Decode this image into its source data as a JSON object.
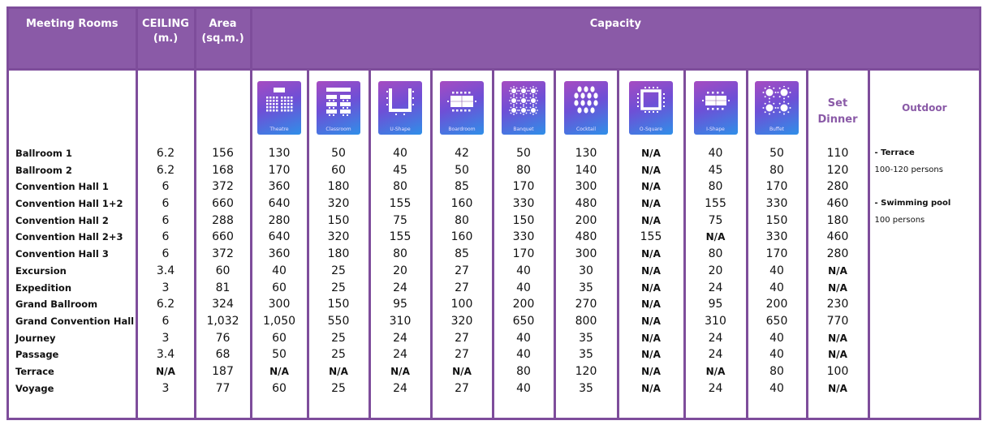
{
  "headers": {
    "meeting_rooms": "Meeting  Rooms",
    "ceiling_line1": "CEILING",
    "ceiling_line2": "(m.)",
    "area_line1": "Area",
    "area_line2": "(sq.m.)",
    "capacity": "Capacity"
  },
  "layouts": [
    {
      "key": "theatre",
      "caption": "Theatre",
      "icon": "theatre-icon"
    },
    {
      "key": "classroom",
      "caption": "Classroom",
      "icon": "classroom-icon"
    },
    {
      "key": "ushape",
      "caption": "U-Shape",
      "icon": "u-shape-icon"
    },
    {
      "key": "boardroom",
      "caption": "Boardroom",
      "icon": "boardroom-icon"
    },
    {
      "key": "banquet",
      "caption": "Banquet",
      "icon": "banquet-icon"
    },
    {
      "key": "cocktail",
      "caption": "Cocktail",
      "icon": "cocktail-icon"
    },
    {
      "key": "osquare",
      "caption": "O-Square",
      "icon": "o-square-icon"
    },
    {
      "key": "ishape",
      "caption": "I-Shape",
      "icon": "i-shape-icon"
    },
    {
      "key": "buffet",
      "caption": "Buffet",
      "icon": "buffet-icon"
    }
  ],
  "set_dinner_line1": "Set",
  "set_dinner_line2": "Dinner",
  "outdoor_header": "Outdoor",
  "outdoor": {
    "terrace_label": "-  Terrace",
    "terrace_capacity": "100-120  persons",
    "pool_label": "-  Swimming  pool",
    "pool_capacity": "100  persons"
  },
  "rooms": [
    {
      "name": "Ballroom  1",
      "ceiling": "6.2",
      "area": "156",
      "values": [
        "130",
        "50",
        "40",
        "42",
        "50",
        "130",
        "N/A",
        "40",
        "50",
        "110"
      ]
    },
    {
      "name": "Ballroom  2",
      "ceiling": "6.2",
      "area": "168",
      "values": [
        "170",
        "60",
        "45",
        "50",
        "80",
        "140",
        "N/A",
        "45",
        "80",
        "120"
      ]
    },
    {
      "name": "Convention  Hall  1",
      "ceiling": "6",
      "area": "372",
      "values": [
        "360",
        "180",
        "80",
        "85",
        "170",
        "300",
        "N/A",
        "80",
        "170",
        "280"
      ]
    },
    {
      "name": "Convention  Hall  1+2",
      "ceiling": "6",
      "area": "660",
      "values": [
        "640",
        "320",
        "155",
        "160",
        "330",
        "480",
        "N/A",
        "155",
        "330",
        "460"
      ]
    },
    {
      "name": "Convention  Hall  2",
      "ceiling": "6",
      "area": "288",
      "values": [
        "280",
        "150",
        "75",
        "80",
        "150",
        "200",
        "N/A",
        "75",
        "150",
        "180"
      ]
    },
    {
      "name": "Convention  Hall  2+3",
      "ceiling": "6",
      "area": "660",
      "values": [
        "640",
        "320",
        "155",
        "160",
        "330",
        "480",
        "155",
        "N/A",
        "330",
        "460"
      ]
    },
    {
      "name": "Convention  Hall  3",
      "ceiling": "6",
      "area": "372",
      "values": [
        "360",
        "180",
        "80",
        "85",
        "170",
        "300",
        "N/A",
        "80",
        "170",
        "280"
      ]
    },
    {
      "name": "Excursion",
      "ceiling": "3.4",
      "area": "60",
      "values": [
        "40",
        "25",
        "20",
        "27",
        "40",
        "30",
        "N/A",
        "20",
        "40",
        "N/A"
      ]
    },
    {
      "name": "Expedition",
      "ceiling": "3",
      "area": "81",
      "values": [
        "60",
        "25",
        "24",
        "27",
        "40",
        "35",
        "N/A",
        "24",
        "40",
        "N/A"
      ]
    },
    {
      "name": "Grand  Ballroom",
      "ceiling": "6.2",
      "area": "324",
      "values": [
        "300",
        "150",
        "95",
        "100",
        "200",
        "270",
        "N/A",
        "95",
        "200",
        "230"
      ]
    },
    {
      "name": "Grand  Convention  Hall",
      "ceiling": "6",
      "area": "1,032",
      "values": [
        "1,050",
        "550",
        "310",
        "320",
        "650",
        "800",
        "N/A",
        "310",
        "650",
        "770"
      ]
    },
    {
      "name": "Journey",
      "ceiling": "3",
      "area": "76",
      "values": [
        "60",
        "25",
        "24",
        "27",
        "40",
        "35",
        "N/A",
        "24",
        "40",
        "N/A"
      ]
    },
    {
      "name": "Passage",
      "ceiling": "3.4",
      "area": "68",
      "values": [
        "50",
        "25",
        "24",
        "27",
        "40",
        "35",
        "N/A",
        "24",
        "40",
        "N/A"
      ]
    },
    {
      "name": "Terrace",
      "ceiling": "N/A",
      "area": "187",
      "values": [
        "N/A",
        "N/A",
        "N/A",
        "N/A",
        "80",
        "120",
        "N/A",
        "N/A",
        "80",
        "100"
      ]
    },
    {
      "name": "Voyage",
      "ceiling": "3",
      "area": "77",
      "values": [
        "60",
        "25",
        "24",
        "27",
        "40",
        "35",
        "N/A",
        "24",
        "40",
        "N/A"
      ]
    }
  ],
  "colors": {
    "header_bg": "#8a5aa7",
    "border": "#7e4d9b",
    "accent_text": "#8a5aa7"
  }
}
